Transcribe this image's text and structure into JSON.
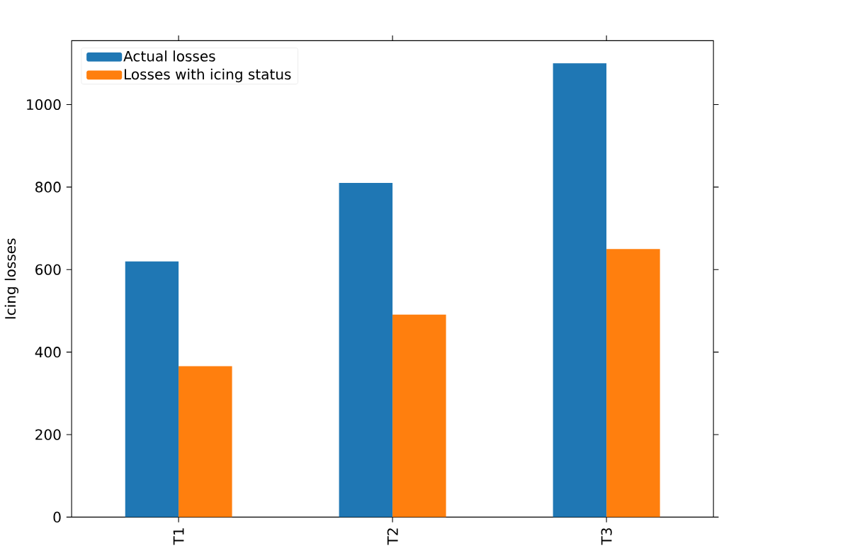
{
  "chart_data": {
    "type": "bar",
    "ylabel": "Icing losses",
    "categories": [
      "T1",
      "T2",
      "T3"
    ],
    "series": [
      {
        "name": "Actual losses",
        "color": "#1f77b4",
        "values": [
          620,
          810,
          1100
        ]
      },
      {
        "name": "Losses with icing status",
        "color": "#ff7f0e",
        "values": [
          366,
          491,
          650
        ]
      }
    ],
    "ylim": [
      0,
      1155
    ],
    "yticks": [
      0,
      200,
      400,
      600,
      800,
      1000
    ],
    "legend": "top left",
    "grid": false
  }
}
